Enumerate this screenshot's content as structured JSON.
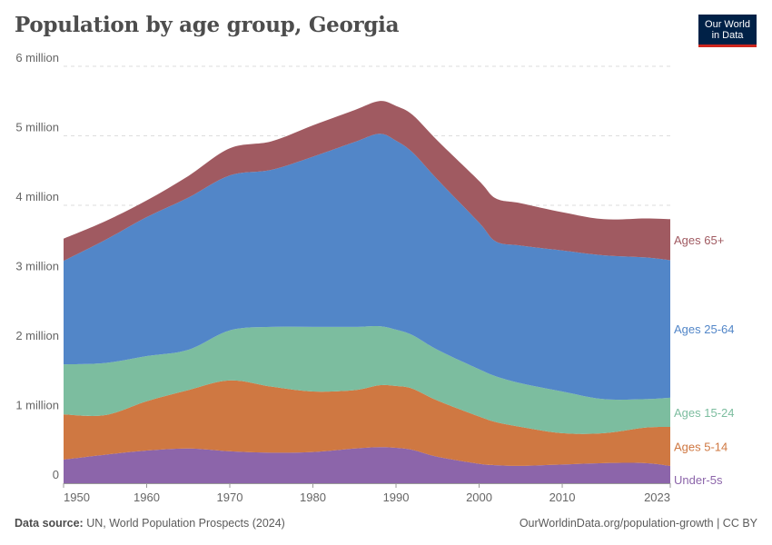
{
  "header": {
    "title": "Population by age group, Georgia",
    "logo_line1": "Our World",
    "logo_line2": "in Data"
  },
  "footer": {
    "source_label": "Data source:",
    "source_text": "UN, World Population Prospects (2024)",
    "url_text": "OurWorldinData.org/population-growth | CC BY"
  },
  "colors": {
    "under5": "#8c65aa",
    "age5_14": "#cf7842",
    "age15_24": "#7cbd9f",
    "age25_64": "#5286c8",
    "age65plus": "#a05a61",
    "grid": "#dddddd",
    "tick_text": "#666666"
  },
  "chart_data": {
    "type": "area",
    "stacked": true,
    "title": "Population by age group, Georgia",
    "x": [
      1950,
      1955,
      1960,
      1965,
      1970,
      1975,
      1980,
      1985,
      1988,
      1990,
      1992,
      1995,
      2000,
      2002,
      2005,
      2010,
      2015,
      2020,
      2023
    ],
    "series": [
      {
        "name": "Under-5s",
        "label": "Under-5s",
        "color": "#8c65aa",
        "values": [
          0.34,
          0.41,
          0.47,
          0.5,
          0.46,
          0.44,
          0.45,
          0.5,
          0.52,
          0.51,
          0.48,
          0.38,
          0.28,
          0.26,
          0.25,
          0.27,
          0.29,
          0.29,
          0.25
        ]
      },
      {
        "name": "Ages 5-14",
        "label": "Ages 5-14",
        "color": "#cf7842",
        "values": [
          0.65,
          0.57,
          0.71,
          0.84,
          1.02,
          0.95,
          0.87,
          0.84,
          0.89,
          0.89,
          0.88,
          0.81,
          0.68,
          0.62,
          0.56,
          0.45,
          0.43,
          0.51,
          0.56
        ]
      },
      {
        "name": "Ages 15-24",
        "label": "Ages 15-24",
        "color": "#7cbd9f",
        "values": [
          0.72,
          0.75,
          0.65,
          0.58,
          0.72,
          0.86,
          0.93,
          0.91,
          0.85,
          0.81,
          0.77,
          0.73,
          0.68,
          0.66,
          0.63,
          0.6,
          0.49,
          0.41,
          0.42
        ]
      },
      {
        "name": "Ages 25-64",
        "label": "Ages 25-64",
        "color": "#5286c8",
        "values": [
          1.49,
          1.77,
          2.0,
          2.19,
          2.23,
          2.26,
          2.45,
          2.66,
          2.77,
          2.72,
          2.63,
          2.45,
          2.11,
          1.94,
          1.98,
          2.03,
          2.07,
          2.04,
          1.98
        ]
      },
      {
        "name": "Ages 65+",
        "label": "Ages 65+",
        "color": "#a05a61",
        "values": [
          0.32,
          0.27,
          0.24,
          0.31,
          0.39,
          0.41,
          0.45,
          0.46,
          0.47,
          0.5,
          0.54,
          0.56,
          0.6,
          0.62,
          0.61,
          0.55,
          0.52,
          0.56,
          0.59
        ]
      }
    ],
    "xlim": [
      1950,
      2023
    ],
    "ylim": [
      0,
      6
    ],
    "y_ticks": [
      {
        "value": 0,
        "label": "0"
      },
      {
        "value": 1,
        "label": "1 million"
      },
      {
        "value": 2,
        "label": "2 million"
      },
      {
        "value": 3,
        "label": "3 million"
      },
      {
        "value": 4,
        "label": "4 million"
      },
      {
        "value": 5,
        "label": "5 million"
      },
      {
        "value": 6,
        "label": "6 million"
      }
    ],
    "x_ticks": [
      {
        "value": 1950,
        "label": "1950"
      },
      {
        "value": 1960,
        "label": "1960"
      },
      {
        "value": 1970,
        "label": "1970"
      },
      {
        "value": 1980,
        "label": "1980"
      },
      {
        "value": 1990,
        "label": "1990"
      },
      {
        "value": 2000,
        "label": "2000"
      },
      {
        "value": 2010,
        "label": "2010"
      },
      {
        "value": 2023,
        "label": "2023"
      }
    ],
    "xlabel": "",
    "ylabel": "",
    "grid": true,
    "legend_position": "right"
  }
}
